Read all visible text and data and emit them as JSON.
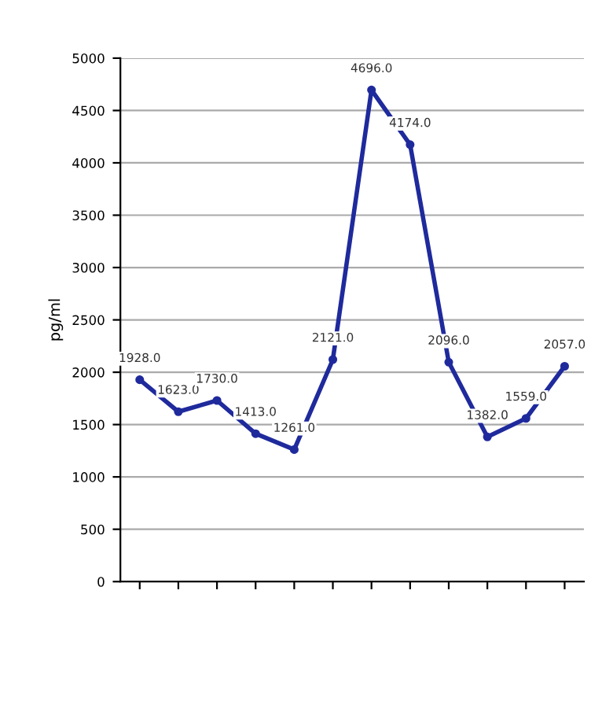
{
  "chart_data": {
    "type": "line",
    "ylabel": "pg/ml",
    "categories": [
      null,
      null,
      null,
      null,
      null,
      null,
      null,
      null,
      null,
      null,
      null,
      null
    ],
    "series": [
      {
        "color": "#1f2a9c",
        "values": [
          1928,
          1623,
          1730,
          1413,
          1261,
          2121,
          4696,
          4174,
          2096,
          1382,
          1559,
          2057
        ],
        "value_labels": [
          "1928.0",
          "1623.0",
          "1730.0",
          "1413.0",
          "1261.0",
          "2121.0",
          "4696.0",
          "4174.0",
          "2096.0",
          "1382.0",
          "1559.0",
          "2057.0"
        ]
      }
    ],
    "ylim": [
      0,
      5000
    ],
    "yticks": [
      0,
      500,
      1000,
      1500,
      2000,
      2500,
      3000,
      3500,
      4000,
      4500,
      5000
    ],
    "grid": "y",
    "marker": "circle",
    "line_style": "solid"
  }
}
